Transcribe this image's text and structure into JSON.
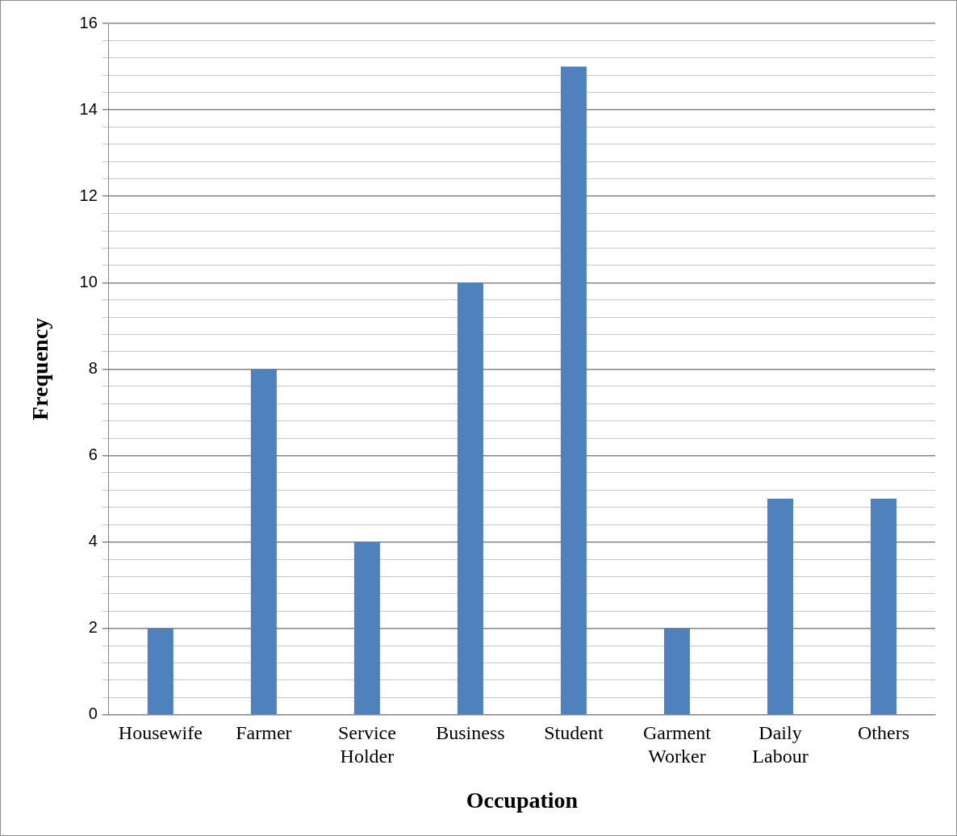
{
  "chart_data": {
    "type": "bar",
    "xlabel": "Occupation",
    "ylabel": "Frequency",
    "categories": [
      "Housewife",
      "Farmer",
      "Service Holder",
      "Business",
      "Student",
      "Garment Worker",
      "Daily Labour",
      "Others"
    ],
    "values": [
      2,
      8,
      4,
      10,
      15,
      2,
      5,
      5
    ],
    "color": "#4f81bd",
    "ylim": [
      0,
      16
    ],
    "yticks": [
      0,
      {
        "value": 0.4,
        "label": null
      },
      {
        "value": 0.8,
        "label": null
      },
      {
        "value": 1.2,
        "label": null
      },
      {
        "value": 1.6,
        "label": null
      },
      2,
      {
        "value": 2.4,
        "label": null
      },
      {
        "value": 2.8,
        "label": null
      },
      {
        "value": 3.2,
        "label": null
      },
      {
        "value": 3.6,
        "label": null
      },
      4,
      {
        "value": 4.4,
        "label": null
      },
      {
        "value": 4.8,
        "label": null
      },
      {
        "value": 5.2,
        "label": null
      },
      {
        "value": 5.6,
        "label": null
      },
      6,
      {
        "value": 6.4,
        "label": null
      },
      {
        "value": 6.8,
        "label": null
      },
      {
        "value": 7.2,
        "label": null
      },
      {
        "value": 7.6,
        "label": null
      },
      8,
      {
        "value": 8.4,
        "label": null
      },
      {
        "value": 8.8,
        "label": null
      },
      {
        "value": 9.2,
        "label": null
      },
      {
        "value": 9.6,
        "label": null
      },
      10,
      {
        "value": 10.4,
        "label": null
      },
      {
        "value": 10.8,
        "label": null
      },
      {
        "value": 11.2,
        "label": null
      },
      {
        "value": 11.6,
        "label": null
      },
      12,
      {
        "value": 12.4,
        "label": null
      },
      {
        "value": 12.8,
        "label": null
      },
      {
        "value": 13.2,
        "label": null
      },
      {
        "value": 13.6,
        "label": null
      },
      14,
      {
        "value": 14.4,
        "label": null
      },
      {
        "value": 14.8,
        "label": null
      },
      {
        "value": 15.2,
        "label": null
      },
      {
        "value": 15.6,
        "label": null
      },
      16
    ],
    "grid": "y",
    "legend": false
  }
}
